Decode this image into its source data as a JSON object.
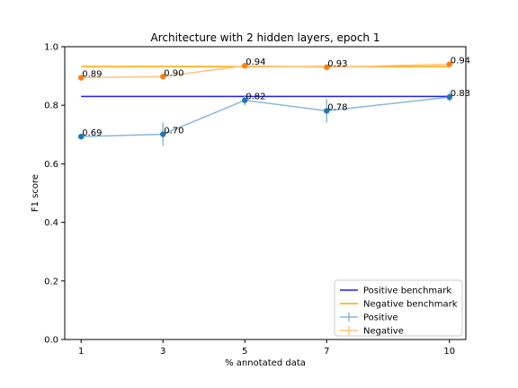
{
  "chart_data": {
    "type": "line",
    "title": "Architecture with 2 hidden layers, epoch 1",
    "xlabel": "% annotated data",
    "ylabel": "F1 score",
    "x": [
      1,
      3,
      5,
      7,
      10
    ],
    "x_ticks": [
      "1",
      "3",
      "5",
      "7",
      "10"
    ],
    "ylim": [
      0.0,
      1.0
    ],
    "y_ticks": [
      "0.0",
      "0.2",
      "0.4",
      "0.6",
      "0.8",
      "1.0"
    ],
    "grid": false,
    "legend_position": "lower-right",
    "benchmarks": [
      {
        "name": "Positive benchmark",
        "value": 0.83,
        "color": "#1f1fff"
      },
      {
        "name": "Negative benchmark",
        "value": 0.932,
        "color": "#ffa500"
      }
    ],
    "series": [
      {
        "name": "Positive",
        "line_color": "#8ab8d8",
        "marker_color": "#1f77b4",
        "values": [
          0.693,
          0.701,
          0.817,
          0.781,
          0.828
        ],
        "errors": [
          0.005,
          0.04,
          0.018,
          0.04,
          0.015
        ],
        "labels": [
          "0.69",
          "0.70",
          "0.82",
          "0.78",
          "0.83"
        ]
      },
      {
        "name": "Negative",
        "line_color": "#ffc27f",
        "marker_color": "#ff7f0e",
        "values": [
          0.894,
          0.898,
          0.935,
          0.93,
          0.94
        ],
        "errors": [
          0.007,
          0.005,
          0.006,
          0.006,
          0.005
        ],
        "labels": [
          "0.89",
          "0.90",
          "0.94",
          "0.93",
          "0.94"
        ]
      }
    ]
  }
}
